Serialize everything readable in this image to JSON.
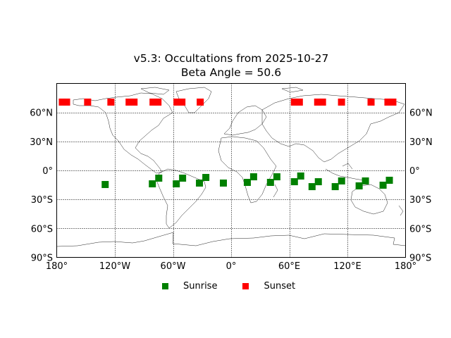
{
  "chart_data": {
    "type": "scatter",
    "title": "v5.3: Occultations from 2025-10-27",
    "subtitle": "Beta Angle = 50.6",
    "projection": "equirectangular world map (coastlines)",
    "xlabel": "",
    "ylabel": "",
    "xlim": [
      -180,
      180
    ],
    "ylim": [
      -90,
      90
    ],
    "x_ticks": [
      "180°",
      "120°W",
      "60°W",
      "0°",
      "60°E",
      "120°E",
      "180°"
    ],
    "x_tick_values": [
      -180,
      -120,
      -60,
      0,
      60,
      120,
      180
    ],
    "y_ticks_left": [
      "90°S",
      "60°S",
      "30°S",
      "0°",
      "30°N",
      "60°N"
    ],
    "y_ticks_right": [
      "90°S",
      "60°S",
      "30°S",
      "0°",
      "30°N",
      "60°N"
    ],
    "y_tick_values": [
      -90,
      -60,
      -30,
      0,
      30,
      60
    ],
    "grid": "dotted, every 60° longitude and 30° latitude",
    "legend_position": "bottom center",
    "series": [
      {
        "name": "Sunrise",
        "color": "#008000",
        "marker": "square",
        "points": [
          {
            "lon": -130,
            "lat": -14.6
          },
          {
            "lon": -81.3,
            "lat": -13.9
          },
          {
            "lon": -74.7,
            "lat": -8.0
          },
          {
            "lon": -56.6,
            "lat": -13.9
          },
          {
            "lon": -50.1,
            "lat": -8.0
          },
          {
            "lon": -32.7,
            "lat": -13.1
          },
          {
            "lon": -26.1,
            "lat": -7.3
          },
          {
            "lon": -8.0,
            "lat": -13.1
          },
          {
            "lon": 16.7,
            "lat": -12.4
          },
          {
            "lon": 23.2,
            "lat": -6.6
          },
          {
            "lon": 40.6,
            "lat": -12.4
          },
          {
            "lon": 47.2,
            "lat": -6.6
          },
          {
            "lon": 65.3,
            "lat": -11.7
          },
          {
            "lon": 71.8,
            "lat": -5.8
          },
          {
            "lon": 83.5,
            "lat": -16.8
          },
          {
            "lon": 90.0,
            "lat": -11.7
          },
          {
            "lon": 107.4,
            "lat": -16.8
          },
          {
            "lon": 114.0,
            "lat": -10.9
          },
          {
            "lon": 132.1,
            "lat": -16.0
          },
          {
            "lon": 138.6,
            "lat": -10.9
          },
          {
            "lon": 156.8,
            "lat": -15.3
          },
          {
            "lon": 163.3,
            "lat": -10.2
          }
        ]
      },
      {
        "name": "Sunset",
        "color": "#ff0000",
        "marker": "square",
        "points": [
          {
            "lon": -174.2,
            "lat": 70.7
          },
          {
            "lon": -169.8,
            "lat": 70.7
          },
          {
            "lon": -148.1,
            "lat": 70.7
          },
          {
            "lon": -124.1,
            "lat": 70.7
          },
          {
            "lon": -105.3,
            "lat": 70.7
          },
          {
            "lon": -100.2,
            "lat": 70.7
          },
          {
            "lon": -80.6,
            "lat": 70.7
          },
          {
            "lon": -75.5,
            "lat": 70.7
          },
          {
            "lon": -55.9,
            "lat": 70.7
          },
          {
            "lon": -50.8,
            "lat": 70.7
          },
          {
            "lon": -31.9,
            "lat": 70.7
          },
          {
            "lon": 65.3,
            "lat": 70.7
          },
          {
            "lon": 70.4,
            "lat": 70.7
          },
          {
            "lon": 89.3,
            "lat": 70.7
          },
          {
            "lon": 94.3,
            "lat": 70.7
          },
          {
            "lon": 113.9,
            "lat": 70.7
          },
          {
            "lon": 144.4,
            "lat": 70.7
          },
          {
            "lon": 161.8,
            "lat": 70.7
          },
          {
            "lon": 166.9,
            "lat": 70.7
          }
        ]
      }
    ]
  },
  "header": {
    "title": "v5.3: Occultations from 2025-10-27",
    "subtitle": "Beta Angle = 50.6"
  },
  "legend": {
    "items": [
      {
        "label": "Sunrise",
        "color": "#008000"
      },
      {
        "label": "Sunset",
        "color": "#ff0000"
      }
    ]
  }
}
